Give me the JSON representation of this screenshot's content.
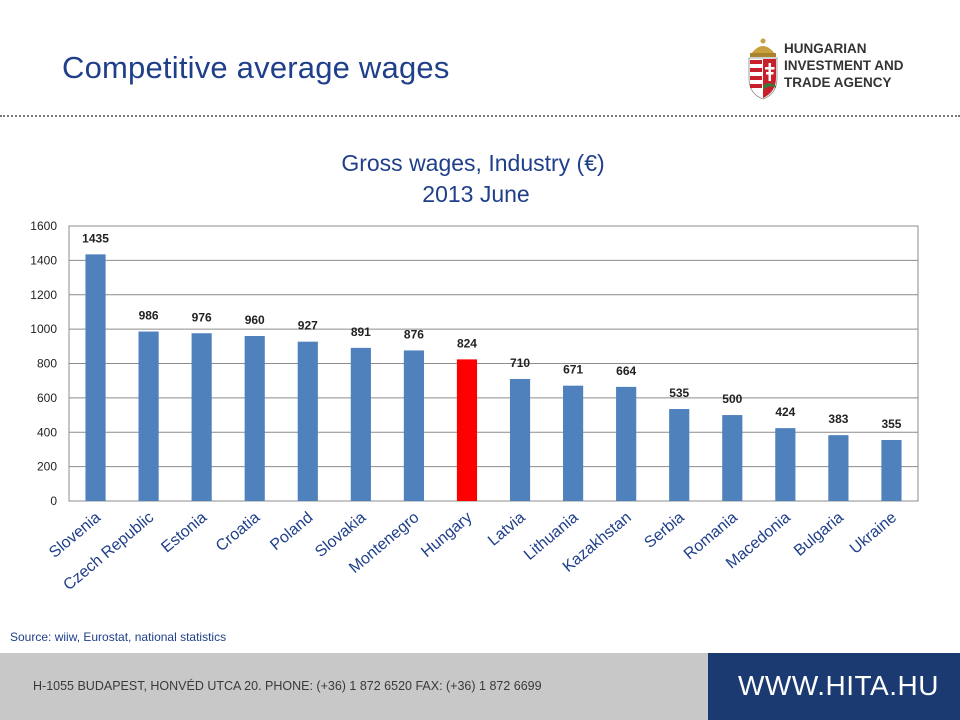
{
  "header": {
    "title": "Competitive average wages",
    "logo_lines": [
      "HUNGARIAN",
      "INVESTMENT AND",
      "TRADE AGENCY"
    ]
  },
  "chart_data": {
    "type": "bar",
    "title": "Gross wages, Industry (€)",
    "subtitle": "2013 June",
    "categories": [
      "Slovenia",
      "Czech Republic",
      "Estonia",
      "Croatia",
      "Poland",
      "Slovakia",
      "Montenegro",
      "Hungary",
      "Latvia",
      "Lithuania",
      "Kazakhstan",
      "Serbia",
      "Romania",
      "Macedonia",
      "Bulgaria",
      "Ukraine"
    ],
    "values": [
      1435,
      986,
      976,
      960,
      927,
      891,
      876,
      824,
      710,
      671,
      664,
      535,
      500,
      424,
      383,
      355
    ],
    "ylim": [
      0,
      1600
    ],
    "yticks": [
      0,
      200,
      400,
      600,
      800,
      1000,
      1200,
      1400,
      1600
    ],
    "grid": true,
    "bar_color": "#4f81bd",
    "highlight_category": "Hungary",
    "highlight_color": "#ff0000"
  },
  "source": "Source: wiiw, Eurostat, national statistics",
  "footer": {
    "address": "H-1055 BUDAPEST, HONVÉD UTCA 20. PHONE: (+36) 1 872 6520  FAX: (+36) 1 872 6699",
    "website": "WWW.HITA.HU"
  },
  "colors": {
    "title": "#1f3f8a",
    "footer_bg": "#c8c8c8",
    "footer_web_bg": "#1c3a72"
  }
}
